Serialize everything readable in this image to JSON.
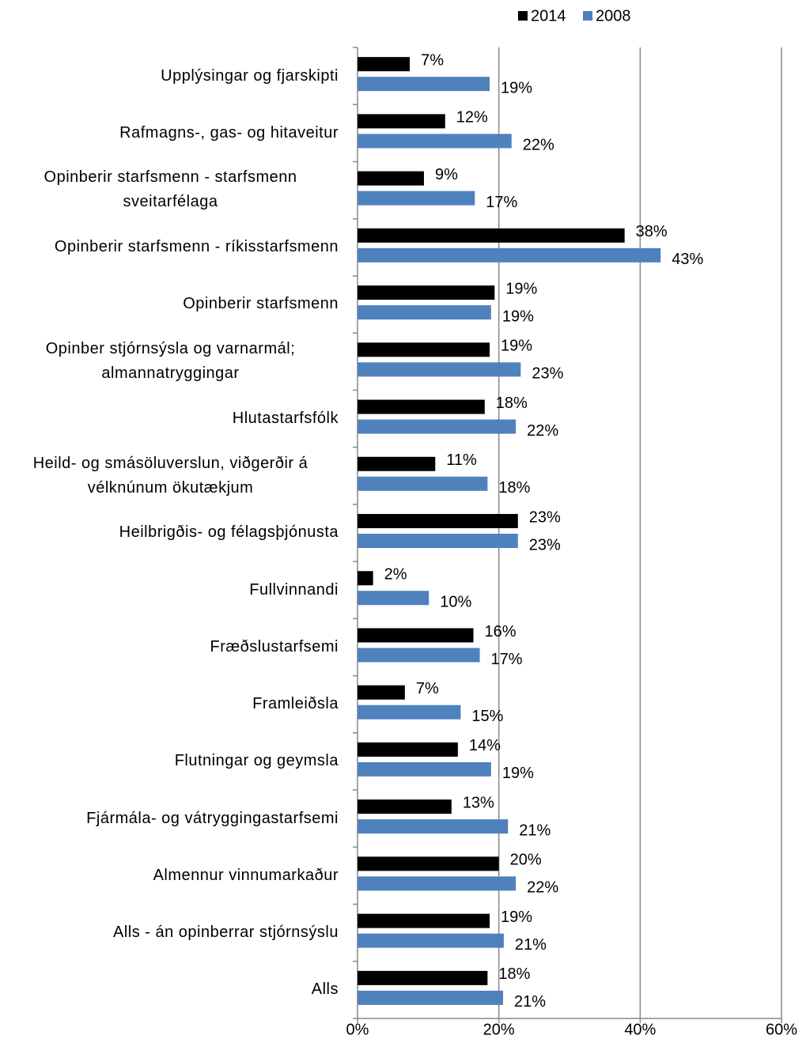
{
  "chart_data": {
    "type": "barh",
    "categories": [
      "Upplýsingar og fjarskipti",
      "Rafmagns-, gas- og hitaveitur",
      "Opinberir starfsmenn - starfsmenn sveitarfélaga",
      "Opinberir starfsmenn - ríkisstarfsmenn",
      "Opinberir starfsmenn",
      "Opinber stjórnsýsla og varnarmál; almannatryggingar",
      "Hlutastarfsfólk",
      "Heild- og smásöluverslun, viðgerðir á vélknúnum ökutækjum",
      "Heilbrigðis- og félagsþjónusta",
      "Fullvinnandi",
      "Fræðslustarfsemi",
      "Framleiðsla",
      "Flutningar og geymsla",
      "Fjármála- og vátryggingastarfsemi",
      "Almennur vinnumarkaður",
      "Alls - án opinberrar stjórnsýslu",
      "Alls"
    ],
    "series": [
      {
        "name": "2014",
        "color": "#000000",
        "values": [
          7.4,
          12.4,
          9.4,
          37.8,
          19.4,
          18.7,
          18.0,
          11.0,
          22.7,
          2.2,
          16.4,
          6.7,
          14.2,
          13.3,
          20.0,
          18.7,
          18.4
        ],
        "value_labels": [
          "7%",
          "12%",
          "9%",
          "38%",
          "19%",
          "19%",
          "18%",
          "11%",
          "23%",
          "2%",
          "16%",
          "7%",
          "14%",
          "13%",
          "20%",
          "19%",
          "18%"
        ]
      },
      {
        "name": "2008",
        "color": "#4f81bd",
        "values": [
          18.7,
          21.8,
          16.6,
          42.9,
          18.9,
          23.1,
          22.4,
          18.4,
          22.7,
          10.1,
          17.3,
          14.6,
          18.9,
          21.3,
          22.4,
          20.7,
          20.6
        ],
        "value_labels": [
          "19%",
          "22%",
          "17%",
          "43%",
          "19%",
          "23%",
          "22%",
          "18%",
          "23%",
          "10%",
          "17%",
          "15%",
          "19%",
          "21%",
          "22%",
          "21%",
          "21%"
        ]
      }
    ],
    "xlim": [
      0,
      60
    ],
    "xticks": [
      {
        "value": 0,
        "label": "0%"
      },
      {
        "value": 20,
        "label": "20%"
      },
      {
        "value": 40,
        "label": "40%"
      },
      {
        "value": 60,
        "label": "60%"
      }
    ],
    "grid": true,
    "legend": "top"
  }
}
